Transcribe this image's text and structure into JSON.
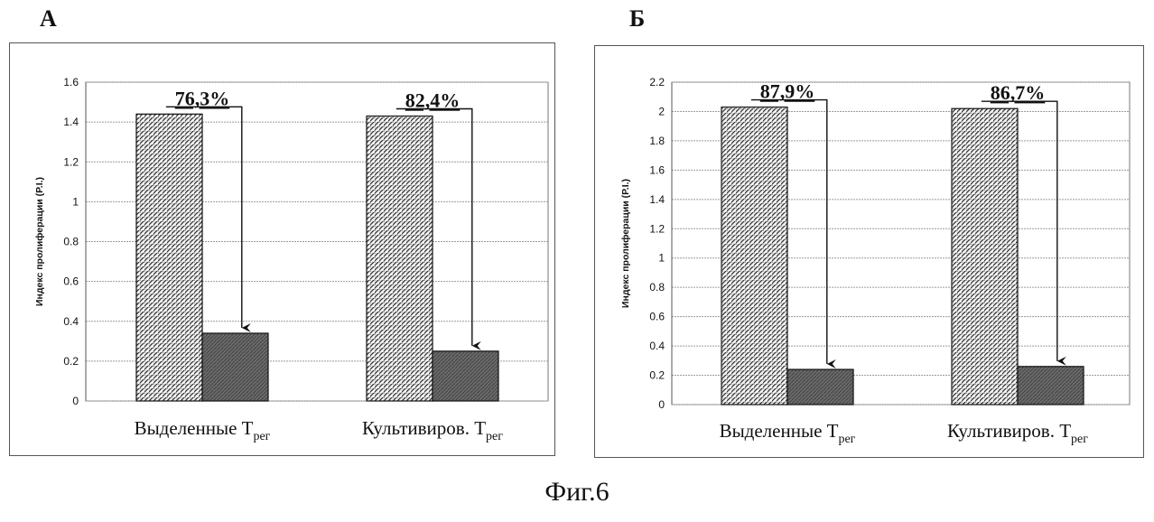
{
  "caption": "Фиг.6",
  "chart_data": [
    {
      "type": "bar",
      "panel_label": "А",
      "ylabel": "Индекс пролиферации (P.I.)",
      "ylim": [
        0,
        1.6
      ],
      "yticks": [
        "0",
        "0.2",
        "0.4",
        "0.6",
        "0.8",
        "1",
        "1.2",
        "1.4",
        "1.6"
      ],
      "categories": [
        {
          "main": "Выделенные T",
          "sub": "рег"
        },
        {
          "main": "Культивиров. T",
          "sub": "рег"
        }
      ],
      "series": [
        {
          "values": [
            1.44,
            1.43
          ],
          "pattern": "hatched"
        },
        {
          "values": [
            0.34,
            0.25
          ],
          "pattern": "dark"
        }
      ],
      "annotations": [
        "76,3%",
        "82,4%"
      ],
      "grid": true
    },
    {
      "type": "bar",
      "panel_label": "Б",
      "ylabel": "Индекс пролиферации (P.I.)",
      "ylim": [
        0,
        2.2
      ],
      "yticks": [
        "0",
        "0.2",
        "0.4",
        "0.6",
        "0.8",
        "1",
        "1.2",
        "1.4",
        "1.6",
        "1.8",
        "2",
        "2.2"
      ],
      "categories": [
        {
          "main": "Выделенные T",
          "sub": "рег"
        },
        {
          "main": "Культивиров. T",
          "sub": "рег"
        }
      ],
      "series": [
        {
          "values": [
            2.03,
            2.02
          ],
          "pattern": "hatched"
        },
        {
          "values": [
            0.24,
            0.26
          ],
          "pattern": "dark"
        }
      ],
      "annotations": [
        "87,9%",
        "86,7%"
      ],
      "grid": true
    }
  ]
}
